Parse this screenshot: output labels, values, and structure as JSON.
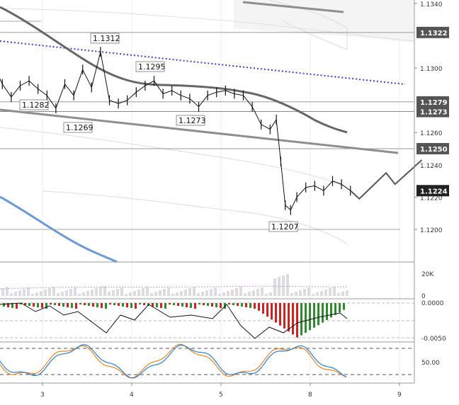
{
  "chart_data": {
    "type": "line",
    "price_panel": {
      "y_ticks": [
        "1.1340",
        "1.1300",
        "1.1260",
        "1.1240",
        "1.1220",
        "1.1200"
      ],
      "y_badges": [
        "1.1322",
        "1.1279",
        "1.1273",
        "1.1250",
        "1.1224"
      ],
      "annotations": [
        "1.1312",
        "1.1295",
        "1.1282",
        "1.1269",
        "1.1273",
        "1.1207"
      ],
      "price_series": [
        {
          "x": 2.25,
          "y": 1.13
        },
        {
          "x": 2.35,
          "y": 1.1292
        },
        {
          "x": 2.45,
          "y": 1.1302
        },
        {
          "x": 2.55,
          "y": 1.129
        },
        {
          "x": 2.65,
          "y": 1.1282
        },
        {
          "x": 2.75,
          "y": 1.1289
        },
        {
          "x": 2.85,
          "y": 1.1292
        },
        {
          "x": 2.95,
          "y": 1.1287
        },
        {
          "x": 3.05,
          "y": 1.1283
        },
        {
          "x": 3.15,
          "y": 1.1275
        },
        {
          "x": 3.25,
          "y": 1.129
        },
        {
          "x": 3.35,
          "y": 1.1283
        },
        {
          "x": 3.45,
          "y": 1.1299
        },
        {
          "x": 3.55,
          "y": 1.1288
        },
        {
          "x": 3.65,
          "y": 1.131
        },
        {
          "x": 3.75,
          "y": 1.128
        },
        {
          "x": 3.85,
          "y": 1.1278
        },
        {
          "x": 3.95,
          "y": 1.128
        },
        {
          "x": 4.05,
          "y": 1.1285
        },
        {
          "x": 4.15,
          "y": 1.1289
        },
        {
          "x": 4.25,
          "y": 1.1292
        },
        {
          "x": 4.35,
          "y": 1.1284
        },
        {
          "x": 4.45,
          "y": 1.1286
        },
        {
          "x": 4.55,
          "y": 1.1283
        },
        {
          "x": 4.65,
          "y": 1.1281
        },
        {
          "x": 4.75,
          "y": 1.1276
        },
        {
          "x": 4.85,
          "y": 1.1283
        },
        {
          "x": 4.95,
          "y": 1.1285
        },
        {
          "x": 5.05,
          "y": 1.1286
        },
        {
          "x": 5.15,
          "y": 1.1284
        },
        {
          "x": 5.25,
          "y": 1.1283
        },
        {
          "x": 5.35,
          "y": 1.1276
        },
        {
          "x": 5.45,
          "y": 1.1265
        },
        {
          "x": 5.55,
          "y": 1.1262
        },
        {
          "x": 5.62,
          "y": 1.1268
        },
        {
          "x": 5.67,
          "y": 1.1242
        },
        {
          "x": 5.72,
          "y": 1.1215
        },
        {
          "x": 5.78,
          "y": 1.1212
        },
        {
          "x": 5.85,
          "y": 1.122
        },
        {
          "x": 5.95,
          "y": 1.1226
        },
        {
          "x": 6.05,
          "y": 1.1227
        },
        {
          "x": 6.15,
          "y": 1.1224
        },
        {
          "x": 6.25,
          "y": 1.123
        },
        {
          "x": 6.35,
          "y": 1.1228
        },
        {
          "x": 6.45,
          "y": 1.1224
        }
      ],
      "forecast": [
        {
          "x": 6.45,
          "y": 1.1224
        },
        {
          "x": 6.55,
          "y": 1.1219
        },
        {
          "x": 6.85,
          "y": 1.1235
        },
        {
          "x": 6.95,
          "y": 1.1228
        },
        {
          "x": 7.25,
          "y": 1.1243
        }
      ]
    },
    "volume_panel": {
      "y_ticks": [
        "20K",
        "0"
      ]
    },
    "macd_panel": {
      "y_ticks": [
        "0.0000",
        "-0.0050"
      ]
    },
    "stoch_panel": {
      "y_ticks": [
        "50.00"
      ]
    },
    "x_ticks": [
      "3",
      "4",
      "5",
      "8",
      "9"
    ],
    "colors": {
      "trendline_blue": "#3a3fcf",
      "ma_dark": "#666666",
      "ma_blue": "#6b9bd2",
      "badge_bg": "#555555",
      "hist_up": "#2e8b2e",
      "hist_down": "#cc2222",
      "stoch_k": "#2a7fd4",
      "stoch_d": "#f0851f"
    }
  }
}
